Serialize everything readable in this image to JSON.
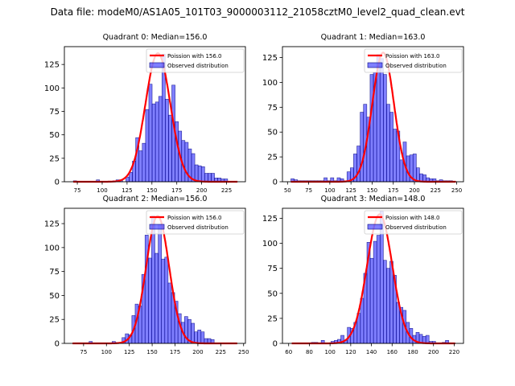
{
  "suptitle": "Data file: modeM0/AS1A05_101T03_9000003112_21058cztM0_level2_quad_clean.evt",
  "chart_data": [
    {
      "type": "bar",
      "title": "Quadrant 0: Median=156.0",
      "legend": [
        "Poission with 156.0",
        "Observed distribution"
      ],
      "legend_position": "top-right",
      "xlim": [
        62,
        244
      ],
      "ylim": [
        0,
        144
      ],
      "xticks": [
        75,
        100,
        125,
        150,
        175,
        200,
        225
      ],
      "yticks": [
        0,
        25,
        50,
        75,
        100,
        125
      ],
      "bin_start": 71,
      "bin_width": 3.3,
      "counts": [
        1,
        0,
        0,
        0,
        0,
        0,
        0,
        2,
        0,
        0,
        0,
        0,
        1,
        2,
        2,
        0,
        5,
        10,
        22,
        47,
        33,
        41,
        77,
        104,
        83,
        85,
        91,
        136,
        88,
        71,
        103,
        64,
        54,
        44,
        42,
        35,
        30,
        18,
        17,
        16,
        9,
        9,
        9,
        4,
        4,
        3,
        3,
        0,
        0,
        0
      ],
      "poisson_mean": 156.0,
      "poisson_peak": 137,
      "colors": {
        "bar": "#0000ff",
        "bar_alpha": 0.5,
        "edge": "#000080",
        "curve": "#ff0000"
      }
    },
    {
      "type": "bar",
      "title": "Quadrant 1: Median=163.0",
      "legend": [
        "Poission with 163.0",
        "Observed distribution"
      ],
      "legend_position": "top-right",
      "xlim": [
        44,
        258
      ],
      "ylim": [
        0,
        136
      ],
      "xticks": [
        50,
        75,
        100,
        125,
        150,
        175,
        200,
        225,
        250
      ],
      "yticks": [
        0,
        25,
        50,
        75,
        100,
        125
      ],
      "bin_start": 54,
      "bin_width": 3.9,
      "counts": [
        3,
        2,
        1,
        1,
        1,
        1,
        1,
        1,
        1,
        1,
        4,
        1,
        4,
        1,
        4,
        3,
        1,
        10,
        14,
        28,
        36,
        70,
        78,
        65,
        108,
        110,
        128,
        124,
        108,
        78,
        70,
        53,
        51,
        22,
        40,
        26,
        27,
        28,
        14,
        8,
        7,
        4,
        3,
        3,
        1,
        2,
        1,
        1,
        1,
        0
      ],
      "poisson_mean": 163.0,
      "poisson_peak": 130,
      "colors": {
        "bar": "#0000ff",
        "bar_alpha": 0.5,
        "edge": "#000080",
        "curve": "#ff0000"
      }
    },
    {
      "type": "bar",
      "title": "Quadrant 2: Median=156.0",
      "legend": [
        "Poission with 156.0",
        "Observed distribution"
      ],
      "legend_position": "top-right",
      "xlim": [
        54,
        252
      ],
      "ylim": [
        0,
        141
      ],
      "xticks": [
        75,
        100,
        125,
        150,
        175,
        200,
        225,
        250
      ],
      "yticks": [
        0,
        25,
        50,
        75,
        100,
        125
      ],
      "bin_start": 63,
      "bin_width": 3.6,
      "counts": [
        0,
        0,
        0,
        0,
        0,
        2,
        0,
        0,
        0,
        0,
        0,
        0,
        2,
        1,
        1,
        6,
        10,
        9,
        29,
        41,
        39,
        72,
        113,
        89,
        133,
        94,
        124,
        88,
        90,
        63,
        53,
        44,
        31,
        22,
        28,
        25,
        21,
        12,
        14,
        12,
        5,
        5,
        4,
        0,
        0,
        0,
        0,
        0,
        0,
        0
      ],
      "poisson_mean": 156.0,
      "poisson_peak": 133,
      "colors": {
        "bar": "#0000ff",
        "bar_alpha": 0.5,
        "edge": "#000080",
        "curve": "#ff0000"
      }
    },
    {
      "type": "bar",
      "title": "Quadrant 3: Median=148.0",
      "legend": [
        "Poission with 148.0",
        "Observed distribution"
      ],
      "legend_position": "top-right",
      "xlim": [
        54,
        229
      ],
      "ylim": [
        0,
        135
      ],
      "xticks": [
        60,
        80,
        100,
        120,
        140,
        160,
        180,
        200,
        220
      ],
      "yticks": [
        0,
        25,
        50,
        75,
        100,
        125
      ],
      "bin_start": 63,
      "bin_width": 3.16,
      "counts": [
        0,
        0,
        0,
        0,
        0,
        0,
        1,
        1,
        0,
        3,
        0,
        0,
        2,
        3,
        4,
        8,
        3,
        16,
        15,
        21,
        30,
        45,
        70,
        101,
        85,
        102,
        108,
        132,
        83,
        75,
        82,
        68,
        41,
        36,
        33,
        21,
        15,
        8,
        11,
        9,
        7,
        8,
        2,
        2,
        0,
        0,
        1,
        3,
        0,
        0
      ],
      "poisson_mean": 148.0,
      "poisson_peak": 129,
      "colors": {
        "bar": "#0000ff",
        "bar_alpha": 0.5,
        "edge": "#000080",
        "curve": "#ff0000"
      }
    }
  ]
}
